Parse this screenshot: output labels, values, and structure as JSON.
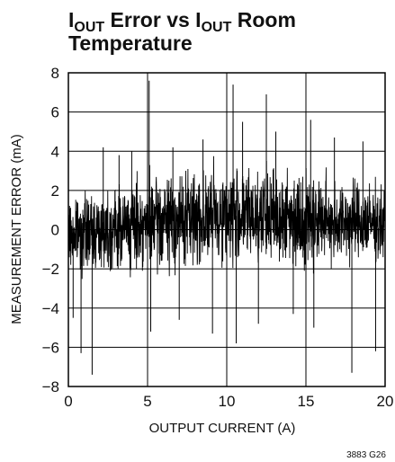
{
  "chart_data": {
    "type": "line",
    "title": {
      "part1_main": "I",
      "part1_sub": "OUT",
      "part2_main": " Error vs I",
      "part2_sub": "OUT",
      "part3": " Room",
      "line2": "Temperature"
    },
    "xlabel": "OUTPUT CURRENT (A)",
    "ylabel": "MEASUREMENT ERROR (mA)",
    "xlim": [
      0,
      20
    ],
    "ylim": [
      -8,
      8
    ],
    "x_ticks": [
      "0",
      "5",
      "10",
      "15",
      "20"
    ],
    "y_ticks": [
      "−8",
      "−6",
      "−4",
      "−2",
      "0",
      "2",
      "4",
      "6",
      "8"
    ],
    "horizontal_gridlines": true,
    "vertical_gridlines": true,
    "figure_code": "3883 G26",
    "series": [
      {
        "color": "#000000",
        "noise_band_half_width_mA": [
          2.0,
          2.4,
          2.7,
          2.9,
          3.0,
          3.0,
          3.0,
          2.9,
          2.7,
          2.5,
          2.3
        ],
        "noise_band_center_mA": [
          -0.3,
          0.0,
          0.2,
          0.4,
          0.6,
          0.7,
          0.7,
          0.6,
          0.5,
          0.4,
          0.3
        ],
        "noise_band_x_A": [
          0,
          2,
          4,
          6,
          8,
          10,
          12,
          14,
          16,
          18,
          20
        ],
        "spikes": [
          {
            "x": 0.3,
            "y": -4.5
          },
          {
            "x": 0.8,
            "y": -6.3
          },
          {
            "x": 1.5,
            "y": -7.4
          },
          {
            "x": 2.2,
            "y": 4.2
          },
          {
            "x": 3.2,
            "y": 3.8
          },
          {
            "x": 4.0,
            "y": 4.0
          },
          {
            "x": 5.1,
            "y": 7.6
          },
          {
            "x": 5.2,
            "y": -5.2
          },
          {
            "x": 6.6,
            "y": 4.2
          },
          {
            "x": 7.0,
            "y": -4.6
          },
          {
            "x": 8.5,
            "y": 4.6
          },
          {
            "x": 9.1,
            "y": -5.3
          },
          {
            "x": 10.4,
            "y": 7.4
          },
          {
            "x": 10.6,
            "y": -5.8
          },
          {
            "x": 11.0,
            "y": 5.5
          },
          {
            "x": 12.0,
            "y": -4.8
          },
          {
            "x": 12.5,
            "y": 6.9
          },
          {
            "x": 13.1,
            "y": 5.0
          },
          {
            "x": 14.2,
            "y": -4.3
          },
          {
            "x": 15.3,
            "y": 5.6
          },
          {
            "x": 15.5,
            "y": -5.0
          },
          {
            "x": 16.8,
            "y": 4.7
          },
          {
            "x": 17.9,
            "y": -7.3
          },
          {
            "x": 18.6,
            "y": 4.5
          },
          {
            "x": 19.4,
            "y": -6.2
          }
        ]
      }
    ]
  }
}
